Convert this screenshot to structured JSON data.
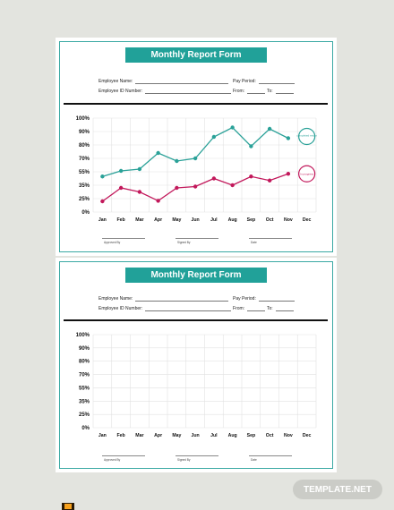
{
  "form": {
    "title": "Monthly Report Form",
    "employee_name_label": "Employee Name:",
    "pay_period_label": "Pay Period:",
    "employee_id_label": "Employee ID Number:",
    "from_label": "From:",
    "to_label": "To:",
    "approved_by_label": "Approved By",
    "signed_by_label": "Signed By",
    "date_label": "Date"
  },
  "chart_data": [
    {
      "type": "line",
      "x": [
        "Jan",
        "Feb",
        "Mar",
        "Apr",
        "May",
        "Jun",
        "Jul",
        "Aug",
        "Sep",
        "Oct",
        "Nov",
        "Dec"
      ],
      "y_ticks": [
        "100%",
        "90%",
        "80%",
        "70%",
        "55%",
        "35%",
        "25%",
        "0%"
      ],
      "series": [
        {
          "name": "completed return",
          "color": "#2aa198",
          "values": [
            48,
            56,
            58,
            74,
            67,
            70,
            86,
            93,
            79,
            92,
            85,
            null
          ]
        },
        {
          "name": "In progress",
          "color": "#c2185b",
          "values": [
            20,
            33,
            30,
            21,
            33,
            34,
            45,
            35,
            48,
            42,
            52,
            null
          ]
        }
      ],
      "annotations": [
        "completed return",
        "In progress"
      ],
      "grid": true
    },
    {
      "type": "line",
      "x": [
        "Jan",
        "Feb",
        "Mar",
        "Apr",
        "May",
        "Jun",
        "Jul",
        "Aug",
        "Sep",
        "Oct",
        "Nov",
        "Dec"
      ],
      "y_ticks": [
        "100%",
        "90%",
        "80%",
        "70%",
        "55%",
        "35%",
        "25%",
        "0%"
      ],
      "series": [],
      "grid": true
    }
  ],
  "brand": {
    "label": "TEMPLATE.NET"
  },
  "icons": {
    "app_icon": "illustrator-file-icon"
  }
}
